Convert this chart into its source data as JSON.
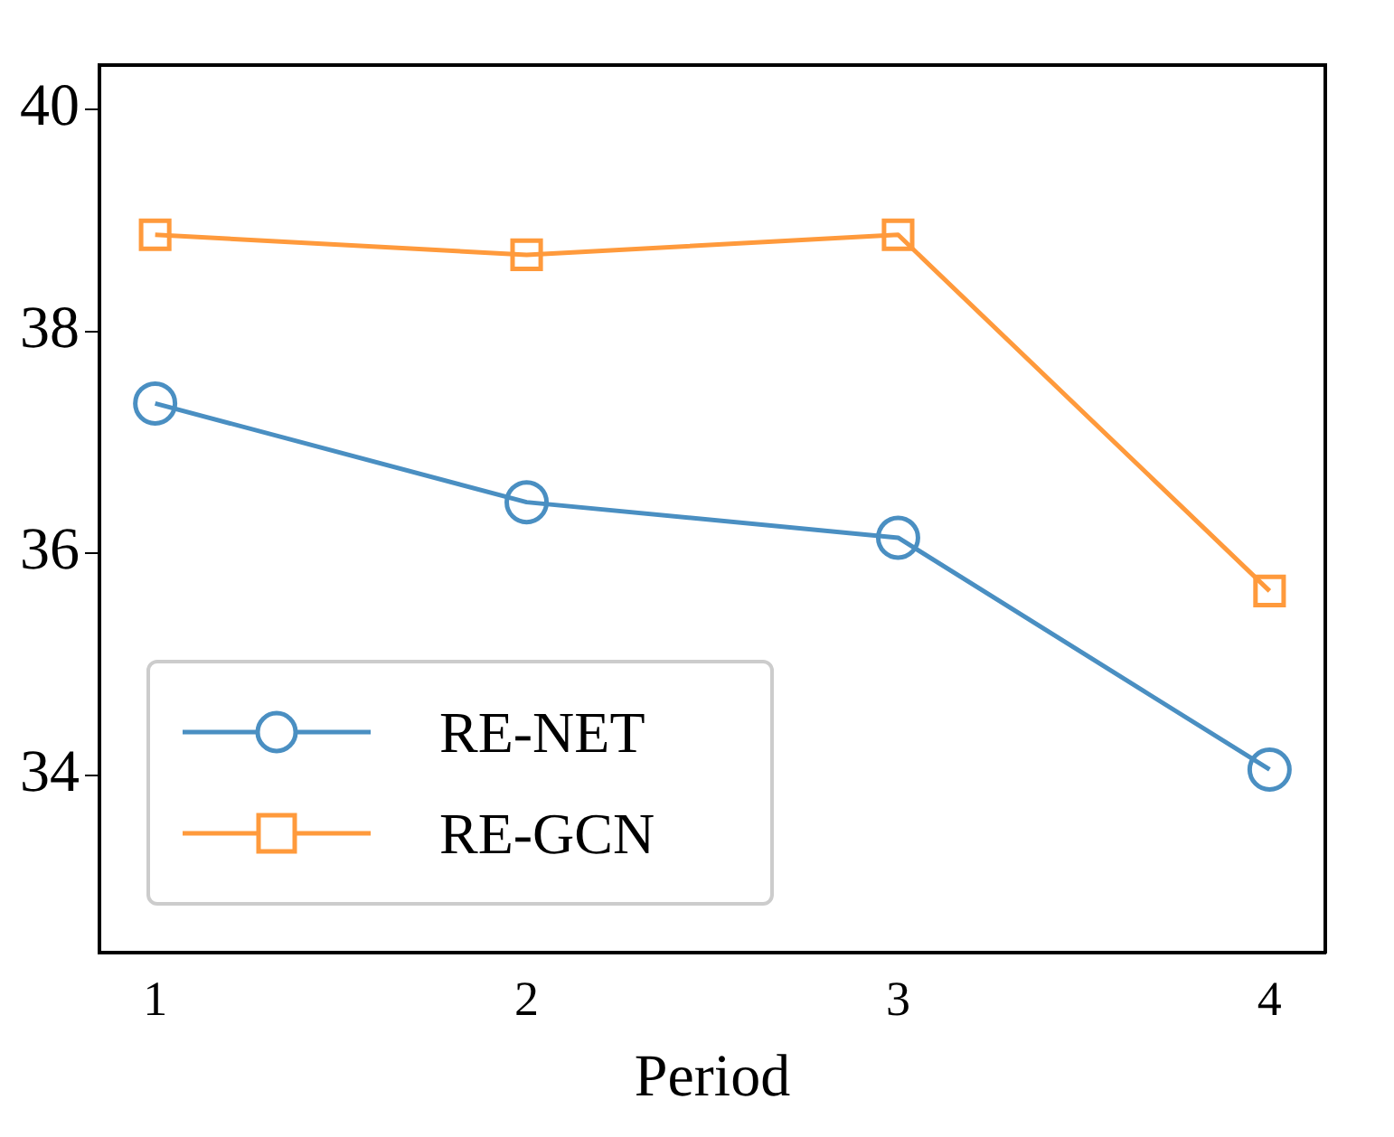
{
  "chart_data": {
    "type": "line",
    "xlabel": "Period",
    "x": [
      1,
      2,
      3,
      4
    ],
    "xlim": [
      0.85,
      4.15
    ],
    "xticks": [
      1,
      2,
      3,
      4
    ],
    "ylim": [
      32.4,
      40.4
    ],
    "yticks": [
      34,
      36,
      38,
      40
    ],
    "grid": false,
    "legend": "bottom left",
    "line_style": "solid",
    "series": [
      {
        "name": "RE-NET",
        "color": "#4a8fc2",
        "marker": "circle",
        "values": [
          37.35,
          36.46,
          36.14,
          34.05
        ]
      },
      {
        "name": "RE-GCN",
        "color": "#ff9a3c",
        "marker": "square",
        "values": [
          38.87,
          38.69,
          38.87,
          35.66
        ]
      }
    ]
  }
}
